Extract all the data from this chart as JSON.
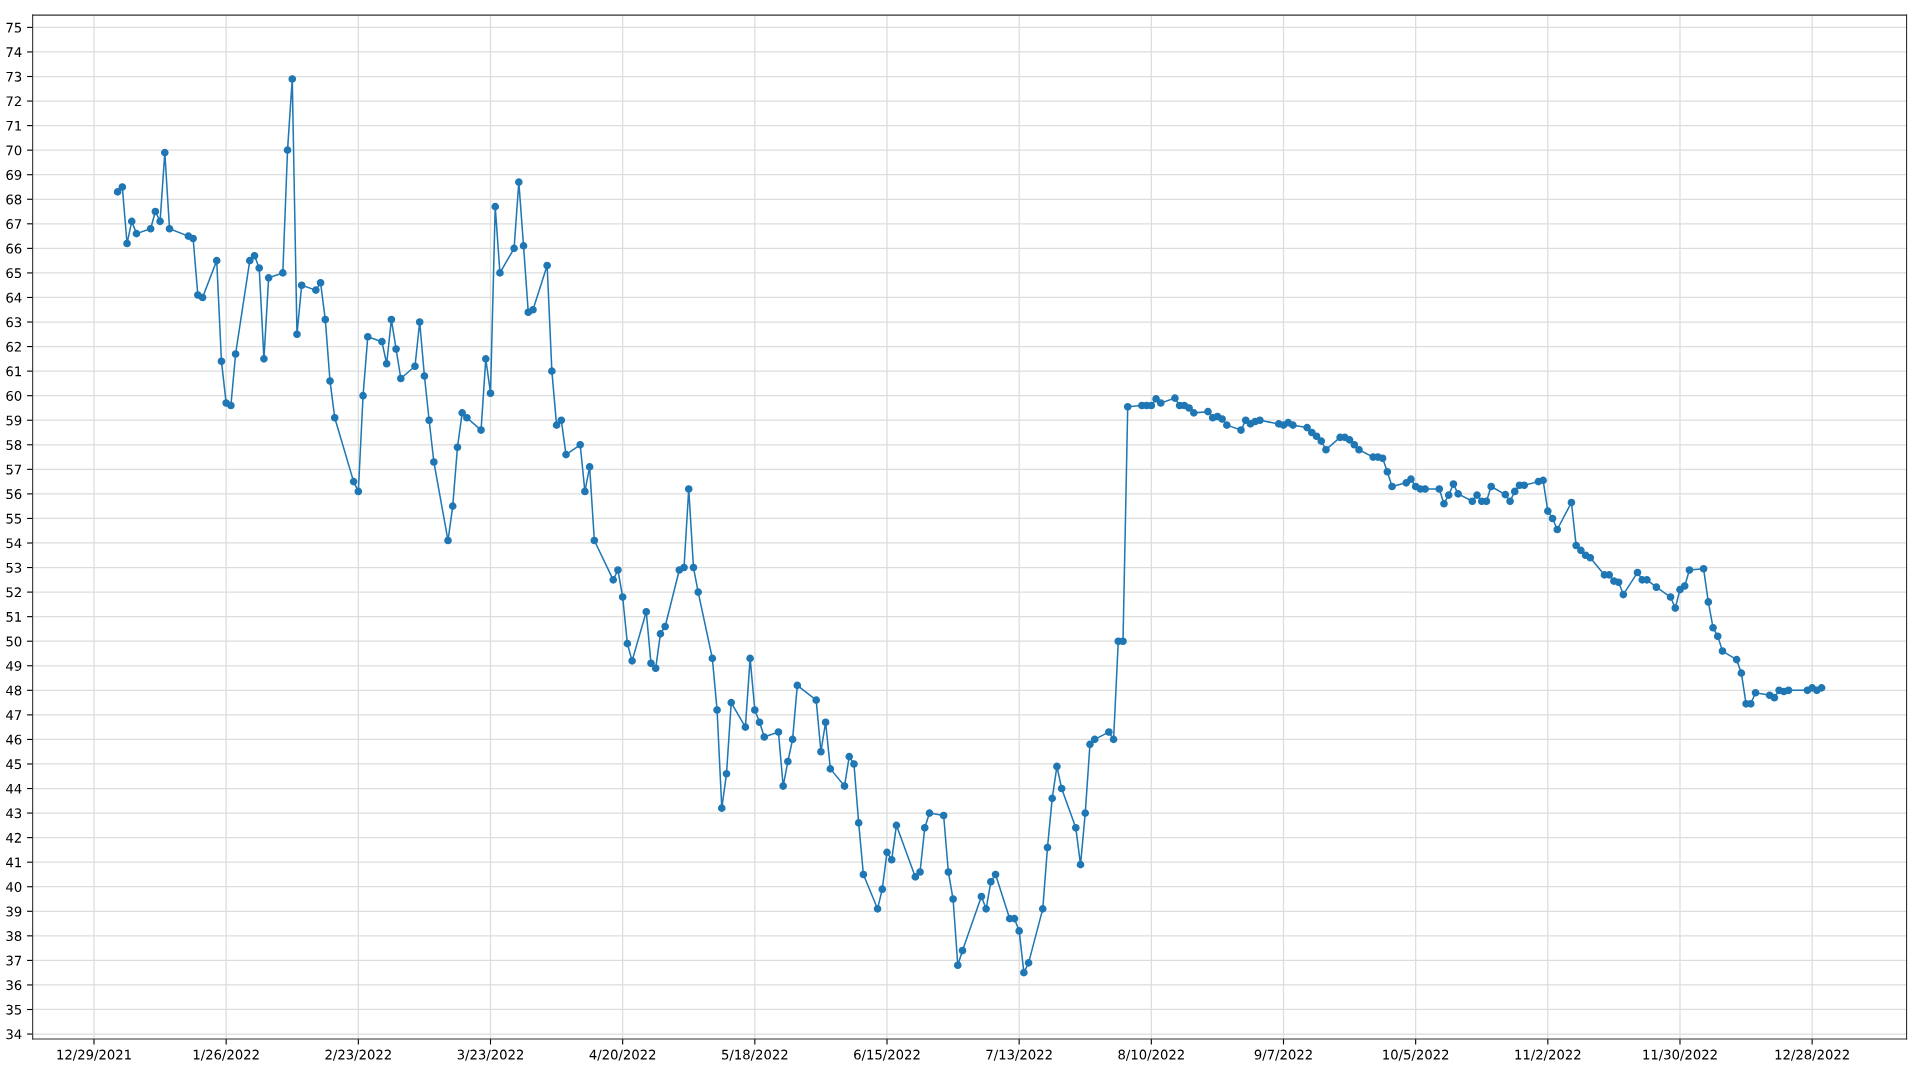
{
  "chart_data": {
    "type": "line",
    "marker": "circle",
    "line_style": "solid",
    "grid": true,
    "xlim": [
      "2021-12-16",
      "2023-01-17"
    ],
    "ylim": [
      33.8,
      75.5
    ],
    "xticks": [
      {
        "value": "2021-12-29",
        "label": "12/29/2021"
      },
      {
        "value": "2022-01-26",
        "label": "1/26/2022"
      },
      {
        "value": "2022-02-23",
        "label": "2/23/2022"
      },
      {
        "value": "2022-03-23",
        "label": "3/23/2022"
      },
      {
        "value": "2022-04-20",
        "label": "4/20/2022"
      },
      {
        "value": "2022-05-18",
        "label": "5/18/2022"
      },
      {
        "value": "2022-06-15",
        "label": "6/15/2022"
      },
      {
        "value": "2022-07-13",
        "label": "7/13/2022"
      },
      {
        "value": "2022-08-10",
        "label": "8/10/2022"
      },
      {
        "value": "2022-09-07",
        "label": "9/7/2022"
      },
      {
        "value": "2022-10-05",
        "label": "10/5/2022"
      },
      {
        "value": "2022-11-02",
        "label": "11/2/2022"
      },
      {
        "value": "2022-11-30",
        "label": "11/30/2022"
      },
      {
        "value": "2022-12-28",
        "label": "12/28/2022"
      }
    ],
    "yticks": [
      34,
      35,
      36,
      37,
      38,
      39,
      40,
      41,
      42,
      43,
      44,
      45,
      46,
      47,
      48,
      49,
      50,
      51,
      52,
      53,
      54,
      55,
      56,
      57,
      58,
      59,
      60,
      61,
      62,
      63,
      64,
      65,
      66,
      67,
      68,
      69,
      70,
      71,
      72,
      73,
      74,
      75
    ],
    "series": [
      {
        "color": "#1f77b4",
        "x": [
          "2022-01-03",
          "2022-01-04",
          "2022-01-05",
          "2022-01-06",
          "2022-01-07",
          "2022-01-10",
          "2022-01-11",
          "2022-01-12",
          "2022-01-13",
          "2022-01-14",
          "2022-01-18",
          "2022-01-19",
          "2022-01-20",
          "2022-01-21",
          "2022-01-24",
          "2022-01-25",
          "2022-01-26",
          "2022-01-27",
          "2022-01-28",
          "2022-01-31",
          "2022-02-01",
          "2022-02-02",
          "2022-02-03",
          "2022-02-04",
          "2022-02-07",
          "2022-02-08",
          "2022-02-09",
          "2022-02-10",
          "2022-02-11",
          "2022-02-14",
          "2022-02-15",
          "2022-02-16",
          "2022-02-17",
          "2022-02-18",
          "2022-02-22",
          "2022-02-23",
          "2022-02-24",
          "2022-02-25",
          "2022-02-28",
          "2022-03-01",
          "2022-03-02",
          "2022-03-03",
          "2022-03-04",
          "2022-03-07",
          "2022-03-08",
          "2022-03-09",
          "2022-03-10",
          "2022-03-11",
          "2022-03-14",
          "2022-03-15",
          "2022-03-16",
          "2022-03-17",
          "2022-03-18",
          "2022-03-21",
          "2022-03-22",
          "2022-03-23",
          "2022-03-24",
          "2022-03-25",
          "2022-03-28",
          "2022-03-29",
          "2022-03-30",
          "2022-03-31",
          "2022-04-01",
          "2022-04-04",
          "2022-04-05",
          "2022-04-06",
          "2022-04-07",
          "2022-04-08",
          "2022-04-11",
          "2022-04-12",
          "2022-04-13",
          "2022-04-14",
          "2022-04-18",
          "2022-04-19",
          "2022-04-20",
          "2022-04-21",
          "2022-04-22",
          "2022-04-25",
          "2022-04-26",
          "2022-04-27",
          "2022-04-28",
          "2022-04-29",
          "2022-05-02",
          "2022-05-03",
          "2022-05-04",
          "2022-05-05",
          "2022-05-06",
          "2022-05-09",
          "2022-05-10",
          "2022-05-11",
          "2022-05-12",
          "2022-05-13",
          "2022-05-16",
          "2022-05-17",
          "2022-05-18",
          "2022-05-19",
          "2022-05-20",
          "2022-05-23",
          "2022-05-24",
          "2022-05-25",
          "2022-05-26",
          "2022-05-27",
          "2022-05-31",
          "2022-06-01",
          "2022-06-02",
          "2022-06-03",
          "2022-06-06",
          "2022-06-07",
          "2022-06-08",
          "2022-06-09",
          "2022-06-10",
          "2022-06-13",
          "2022-06-14",
          "2022-06-15",
          "2022-06-16",
          "2022-06-17",
          "2022-06-21",
          "2022-06-22",
          "2022-06-23",
          "2022-06-24",
          "2022-06-27",
          "2022-06-28",
          "2022-06-29",
          "2022-06-30",
          "2022-07-01",
          "2022-07-05",
          "2022-07-06",
          "2022-07-07",
          "2022-07-08",
          "2022-07-11",
          "2022-07-12",
          "2022-07-13",
          "2022-07-14",
          "2022-07-15",
          "2022-07-18",
          "2022-07-19",
          "2022-07-20",
          "2022-07-21",
          "2022-07-22",
          "2022-07-25",
          "2022-07-26",
          "2022-07-27",
          "2022-07-28",
          "2022-07-29",
          "2022-08-01",
          "2022-08-02",
          "2022-08-03",
          "2022-08-04",
          "2022-08-05",
          "2022-08-08",
          "2022-08-09",
          "2022-08-10",
          "2022-08-11",
          "2022-08-12",
          "2022-08-15",
          "2022-08-16",
          "2022-08-17",
          "2022-08-18",
          "2022-08-19",
          "2022-08-22",
          "2022-08-23",
          "2022-08-24",
          "2022-08-25",
          "2022-08-26",
          "2022-08-29",
          "2022-08-30",
          "2022-08-31",
          "2022-09-01",
          "2022-09-02",
          "2022-09-06",
          "2022-09-07",
          "2022-09-08",
          "2022-09-09",
          "2022-09-12",
          "2022-09-13",
          "2022-09-14",
          "2022-09-15",
          "2022-09-16",
          "2022-09-19",
          "2022-09-20",
          "2022-09-21",
          "2022-09-22",
          "2022-09-23",
          "2022-09-26",
          "2022-09-27",
          "2022-09-28",
          "2022-09-29",
          "2022-09-30",
          "2022-10-03",
          "2022-10-04",
          "2022-10-05",
          "2022-10-06",
          "2022-10-07",
          "2022-10-10",
          "2022-10-11",
          "2022-10-12",
          "2022-10-13",
          "2022-10-14",
          "2022-10-17",
          "2022-10-18",
          "2022-10-19",
          "2022-10-20",
          "2022-10-21",
          "2022-10-24",
          "2022-10-25",
          "2022-10-26",
          "2022-10-27",
          "2022-10-28",
          "2022-10-31",
          "2022-11-01",
          "2022-11-02",
          "2022-11-03",
          "2022-11-04",
          "2022-11-07",
          "2022-11-08",
          "2022-11-09",
          "2022-11-10",
          "2022-11-11",
          "2022-11-14",
          "2022-11-15",
          "2022-11-16",
          "2022-11-17",
          "2022-11-18",
          "2022-11-21",
          "2022-11-22",
          "2022-11-23",
          "2022-11-25",
          "2022-11-28",
          "2022-11-29",
          "2022-11-30",
          "2022-12-01",
          "2022-12-02",
          "2022-12-05",
          "2022-12-06",
          "2022-12-07",
          "2022-12-08",
          "2022-12-09",
          "2022-12-12",
          "2022-12-13",
          "2022-12-14",
          "2022-12-15",
          "2022-12-16",
          "2022-12-19",
          "2022-12-20",
          "2022-12-21",
          "2022-12-22",
          "2022-12-23",
          "2022-12-27",
          "2022-12-28",
          "2022-12-29",
          "2022-12-30"
        ],
        "values": [
          68.3,
          68.5,
          66.2,
          67.1,
          66.6,
          66.8,
          67.5,
          67.1,
          69.9,
          66.8,
          66.5,
          66.4,
          64.1,
          64.0,
          65.5,
          61.4,
          59.7,
          59.6,
          61.7,
          65.5,
          65.7,
          65.2,
          61.5,
          64.8,
          65.0,
          70.0,
          72.9,
          62.5,
          64.5,
          64.3,
          64.6,
          63.1,
          60.6,
          59.1,
          56.5,
          56.1,
          60.0,
          62.4,
          62.2,
          61.3,
          63.1,
          61.9,
          60.7,
          61.2,
          63.0,
          60.8,
          59.0,
          57.3,
          54.1,
          55.5,
          57.9,
          59.3,
          59.1,
          58.6,
          61.5,
          60.1,
          67.7,
          65.0,
          66.0,
          68.7,
          66.1,
          63.4,
          63.5,
          65.3,
          61.0,
          58.8,
          59.0,
          57.6,
          58.0,
          56.1,
          57.1,
          54.1,
          52.5,
          52.9,
          51.8,
          49.9,
          49.2,
          51.2,
          49.1,
          48.9,
          50.3,
          50.6,
          52.9,
          53.0,
          56.2,
          53.0,
          52.0,
          49.3,
          47.2,
          43.2,
          44.6,
          47.5,
          46.5,
          49.3,
          47.2,
          46.7,
          46.1,
          46.3,
          44.1,
          45.1,
          46.0,
          48.2,
          47.6,
          45.5,
          46.7,
          44.8,
          44.1,
          45.3,
          45.0,
          42.6,
          40.5,
          39.1,
          39.9,
          41.4,
          41.1,
          42.5,
          40.4,
          40.6,
          42.4,
          43.0,
          42.9,
          40.6,
          39.5,
          36.8,
          37.4,
          39.6,
          39.1,
          40.2,
          40.5,
          38.7,
          38.7,
          38.2,
          36.5,
          36.9,
          39.1,
          41.6,
          43.6,
          44.9,
          44.0,
          42.4,
          40.9,
          43.0,
          45.8,
          46.0,
          46.3,
          46.0,
          50.0,
          50.0,
          59.55,
          59.6,
          59.6,
          59.6,
          59.87,
          59.7,
          59.9,
          59.6,
          59.6,
          59.5,
          59.3,
          59.35,
          59.1,
          59.15,
          59.05,
          58.8,
          58.6,
          59.0,
          58.85,
          58.95,
          59.0,
          58.85,
          58.8,
          58.9,
          58.8,
          58.7,
          58.5,
          58.35,
          58.15,
          57.8,
          58.3,
          58.3,
          58.2,
          58.0,
          57.8,
          57.5,
          57.5,
          57.45,
          56.9,
          56.3,
          56.45,
          56.6,
          56.3,
          56.2,
          56.2,
          56.2,
          55.6,
          55.95,
          56.4,
          56.0,
          55.7,
          55.95,
          55.7,
          55.7,
          56.3,
          55.97,
          55.7,
          56.1,
          56.35,
          56.35,
          56.5,
          56.55,
          55.3,
          55.0,
          54.55,
          55.65,
          53.9,
          53.7,
          53.5,
          53.4,
          52.7,
          52.7,
          52.45,
          52.4,
          51.9,
          52.8,
          52.5,
          52.5,
          52.2,
          51.8,
          51.35,
          52.1,
          52.25,
          52.9,
          52.95,
          51.6,
          50.55,
          50.2,
          49.6,
          49.25,
          48.7,
          47.45,
          47.45,
          47.9,
          47.8,
          47.7,
          48.0,
          47.95,
          48.0,
          48.0,
          48.1,
          48.0,
          48.1
        ]
      }
    ]
  }
}
